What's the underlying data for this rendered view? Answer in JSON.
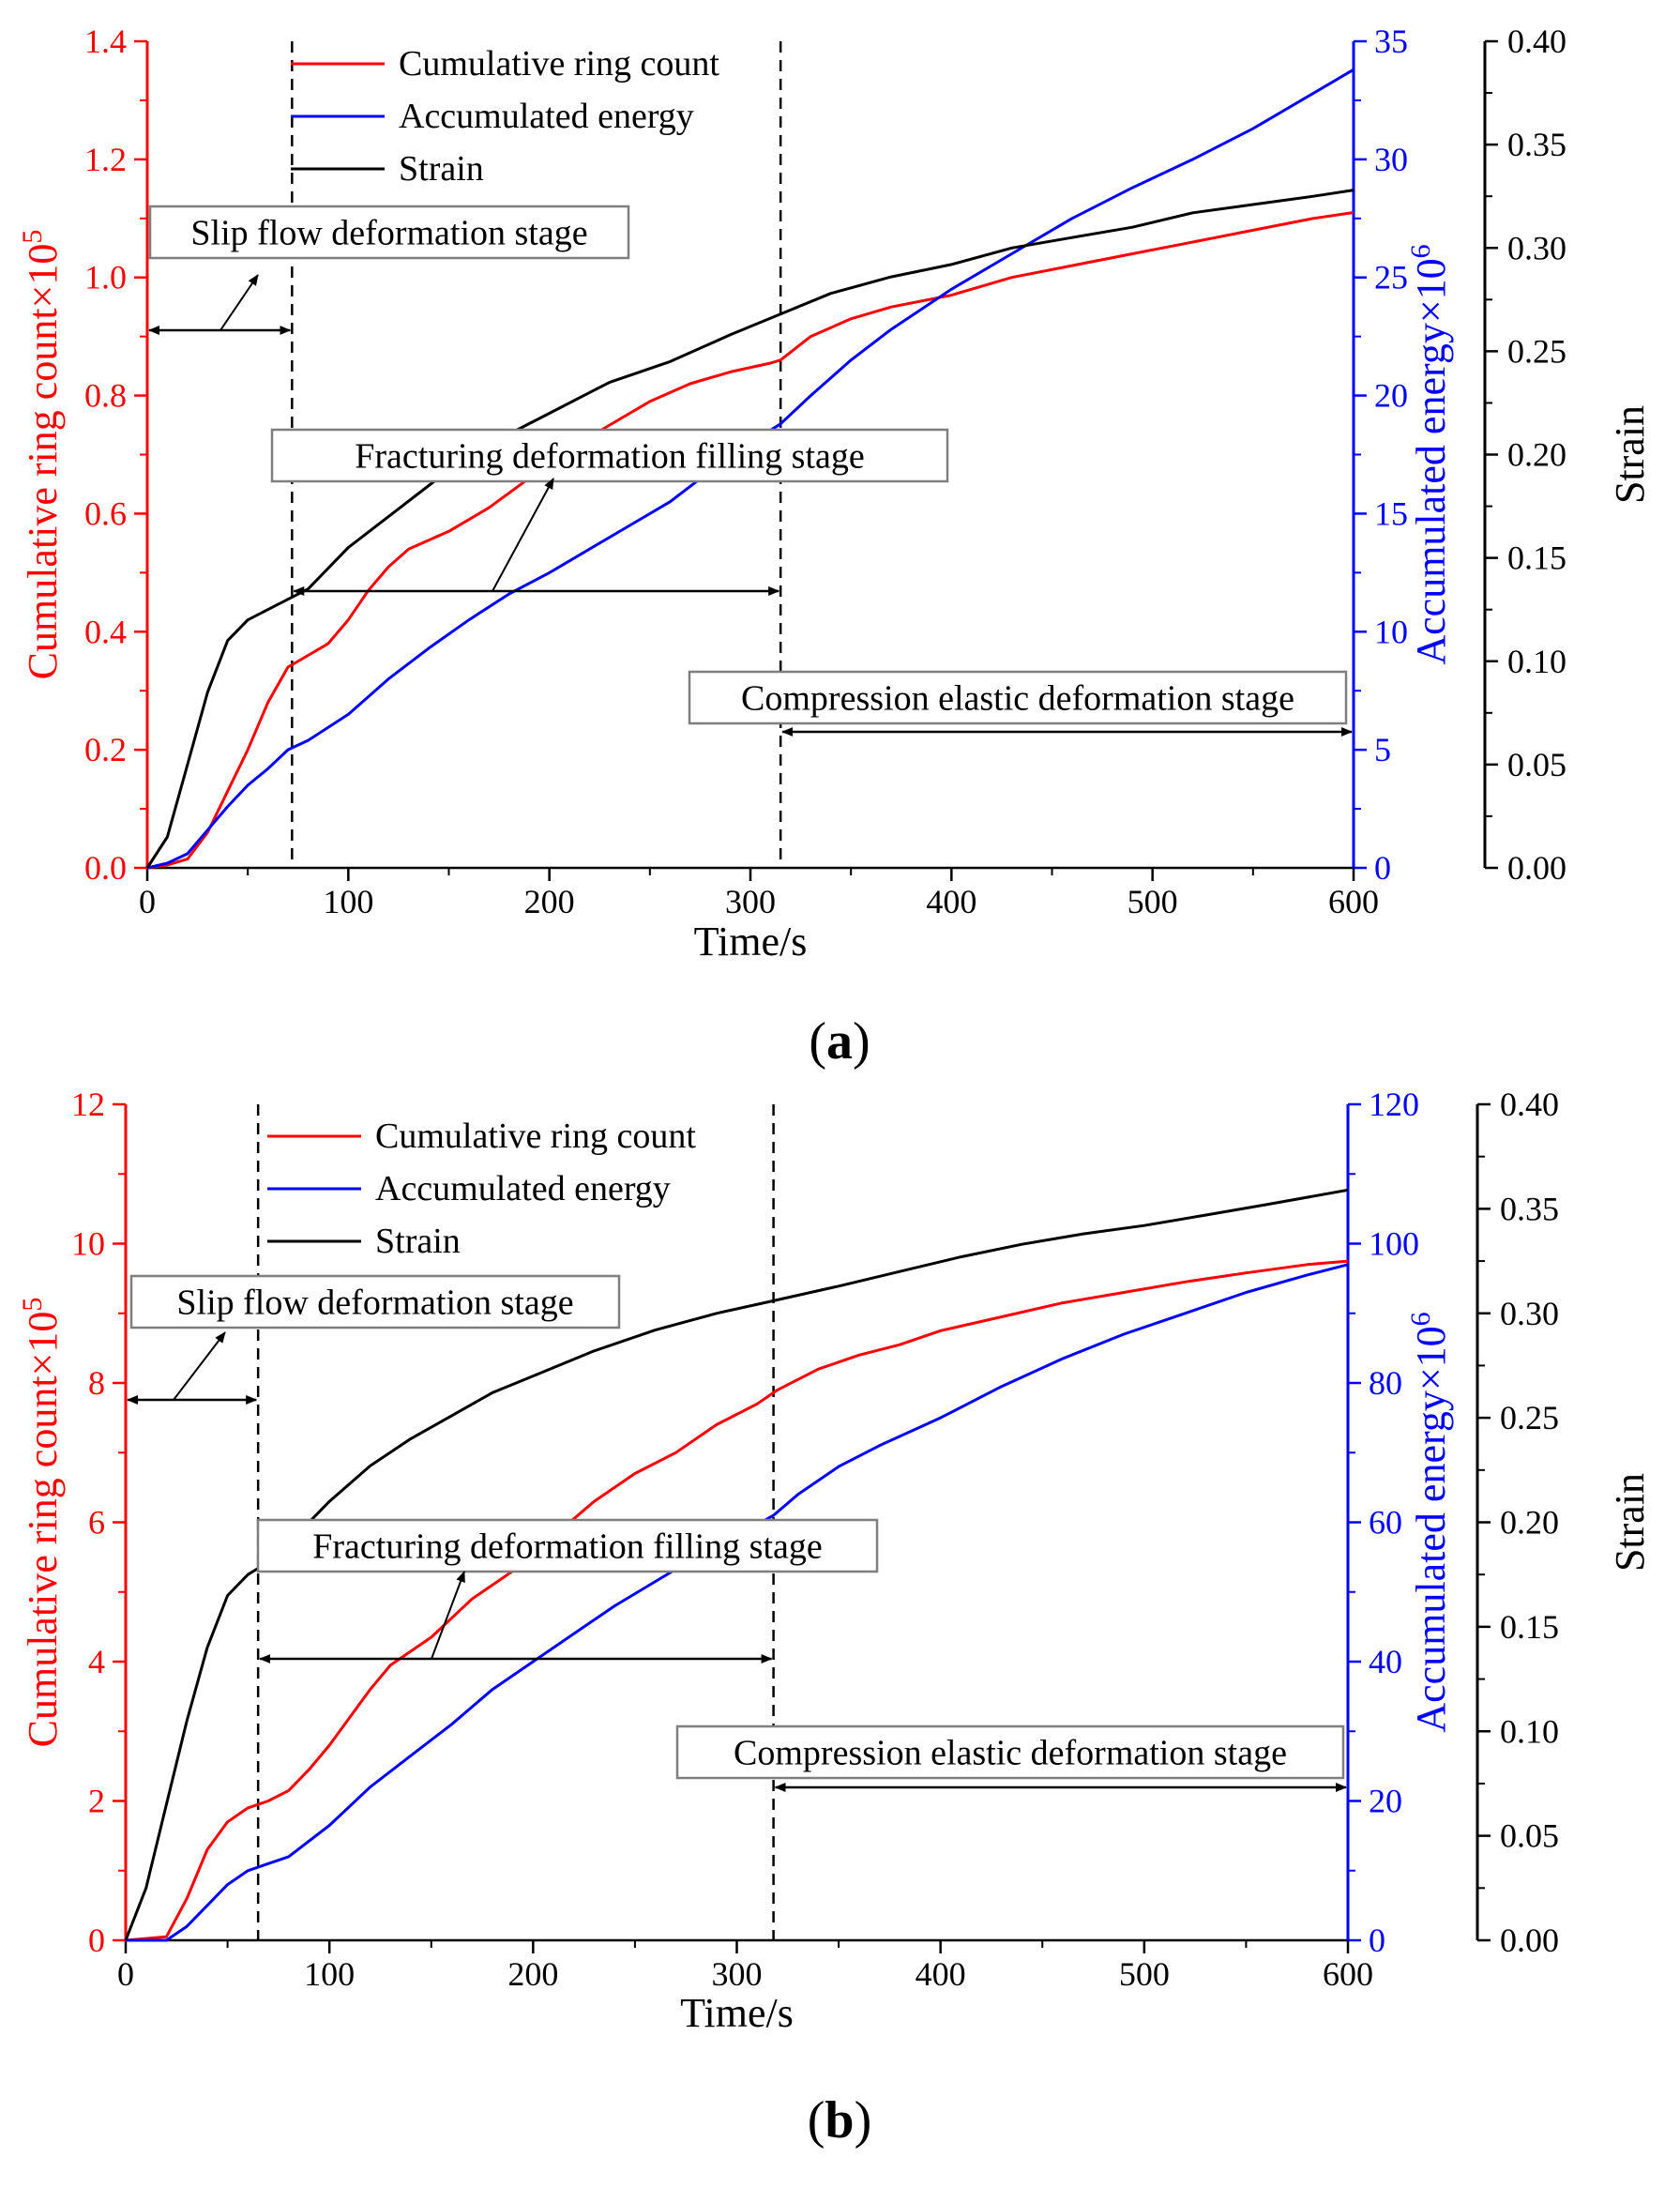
{
  "chart_data": [
    {
      "panel": "(a)",
      "panel_letter": "a",
      "type": "line",
      "xlabel": "Time/s",
      "xlim": [
        0,
        600
      ],
      "xticks": [
        0,
        100,
        200,
        300,
        400,
        500,
        600
      ],
      "ylabel_left": "Cumulative ring count×10",
      "ylabel_left_exp": "5",
      "ylim_left": [
        0,
        1.4
      ],
      "yticks_left": [
        "0.0",
        "0.2",
        "0.4",
        "0.6",
        "0.8",
        "1.0",
        "1.2",
        "1.4"
      ],
      "ylabel_right": "Accumulated energy×10",
      "ylabel_right_exp": "6",
      "ylim_right": [
        0,
        35
      ],
      "yticks_right": [
        "0",
        "5",
        "10",
        "15",
        "20",
        "25",
        "30",
        "35"
      ],
      "ylabel_strain": "Strain",
      "ylim_strain": [
        0,
        0.4
      ],
      "yticks_strain": [
        "0.00",
        "0.05",
        "0.10",
        "0.15",
        "0.20",
        "0.25",
        "0.30",
        "0.35",
        "0.40"
      ],
      "legend": [
        "Cumulative ring count",
        "Accumulated energy",
        "Strain"
      ],
      "boundaries": [
        72,
        315
      ],
      "stages": [
        {
          "label": "Slip flow deformation stage",
          "from": 0,
          "to": 72
        },
        {
          "label": "Fracturing deformation filling stage",
          "from": 72,
          "to": 315
        },
        {
          "label": "Compression elastic deformation stage",
          "from": 315,
          "to": 600
        }
      ],
      "series": [
        {
          "name": "Cumulative ring count",
          "axis": "left",
          "color": "#ff0000",
          "x": [
            0,
            10,
            20,
            30,
            40,
            50,
            60,
            70,
            80,
            90,
            100,
            110,
            120,
            130,
            150,
            170,
            190,
            210,
            230,
            250,
            270,
            290,
            310,
            315,
            330,
            350,
            370,
            400,
            430,
            460,
            490,
            520,
            550,
            580,
            600
          ],
          "y": [
            0,
            0.005,
            0.015,
            0.06,
            0.13,
            0.2,
            0.28,
            0.34,
            0.36,
            0.38,
            0.42,
            0.47,
            0.51,
            0.54,
            0.57,
            0.61,
            0.66,
            0.71,
            0.75,
            0.79,
            0.82,
            0.84,
            0.855,
            0.86,
            0.9,
            0.93,
            0.95,
            0.97,
            1.0,
            1.02,
            1.04,
            1.06,
            1.08,
            1.1,
            1.11
          ]
        },
        {
          "name": "Accumulated energy",
          "axis": "right",
          "color": "#0000ff",
          "x": [
            0,
            10,
            20,
            30,
            40,
            50,
            60,
            70,
            80,
            100,
            120,
            140,
            160,
            180,
            200,
            220,
            240,
            260,
            280,
            300,
            315,
            330,
            350,
            370,
            400,
            430,
            460,
            490,
            520,
            550,
            580,
            600
          ],
          "y": [
            0,
            0.2,
            0.6,
            1.6,
            2.6,
            3.5,
            4.2,
            5.0,
            5.4,
            6.5,
            8.0,
            9.3,
            10.5,
            11.6,
            12.5,
            13.5,
            14.5,
            15.5,
            16.8,
            18.0,
            18.8,
            20.0,
            21.5,
            22.8,
            24.5,
            26.0,
            27.5,
            28.8,
            30.0,
            31.3,
            32.8,
            33.8
          ]
        },
        {
          "name": "Strain",
          "axis": "strain",
          "color": "#000000",
          "x": [
            0,
            10,
            20,
            30,
            40,
            50,
            60,
            70,
            80,
            100,
            120,
            140,
            160,
            180,
            200,
            230,
            260,
            290,
            315,
            340,
            370,
            400,
            430,
            460,
            490,
            520,
            550,
            580,
            600
          ],
          "y": [
            0,
            0.015,
            0.05,
            0.085,
            0.11,
            0.12,
            0.125,
            0.13,
            0.135,
            0.155,
            0.17,
            0.185,
            0.2,
            0.21,
            0.22,
            0.235,
            0.245,
            0.258,
            0.268,
            0.278,
            0.286,
            0.292,
            0.3,
            0.305,
            0.31,
            0.317,
            0.321,
            0.325,
            0.328
          ]
        }
      ]
    },
    {
      "panel": "(b)",
      "panel_letter": "b",
      "type": "line",
      "xlabel": "Time/s",
      "xlim": [
        0,
        600
      ],
      "xticks": [
        0,
        100,
        200,
        300,
        400,
        500,
        600
      ],
      "ylabel_left": "Cumulative ring count×10",
      "ylabel_left_exp": "5",
      "ylim_left": [
        0,
        12
      ],
      "yticks_left": [
        "0",
        "2",
        "4",
        "6",
        "8",
        "10",
        "12"
      ],
      "ylabel_right": "Accumulated energy×10",
      "ylabel_right_exp": "6",
      "ylim_right": [
        0,
        120
      ],
      "yticks_right": [
        "0",
        "20",
        "40",
        "60",
        "80",
        "100",
        "120"
      ],
      "ylabel_strain": "Strain",
      "ylim_strain": [
        0,
        0.4
      ],
      "yticks_strain": [
        "0.00",
        "0.05",
        "0.10",
        "0.15",
        "0.20",
        "0.25",
        "0.30",
        "0.35",
        "0.40"
      ],
      "legend": [
        "Cumulative ring count",
        "Accumulated energy",
        "Strain"
      ],
      "boundaries": [
        65,
        318
      ],
      "stages": [
        {
          "label": "Slip flow deformation stage",
          "from": 0,
          "to": 65
        },
        {
          "label": "Fracturing deformation filling stage",
          "from": 65,
          "to": 318
        },
        {
          "label": "Compression elastic deformation stage",
          "from": 318,
          "to": 600
        }
      ],
      "series": [
        {
          "name": "Cumulative ring count",
          "axis": "left",
          "color": "#ff0000",
          "x": [
            0,
            20,
            30,
            40,
            50,
            60,
            70,
            80,
            90,
            100,
            110,
            120,
            130,
            150,
            170,
            190,
            210,
            230,
            250,
            270,
            290,
            310,
            320,
            340,
            360,
            380,
            400,
            430,
            460,
            490,
            520,
            550,
            580,
            600
          ],
          "y": [
            0,
            0.05,
            0.6,
            1.3,
            1.7,
            1.9,
            2.0,
            2.15,
            2.45,
            2.8,
            3.2,
            3.6,
            3.95,
            4.35,
            4.9,
            5.3,
            5.8,
            6.3,
            6.7,
            7.0,
            7.4,
            7.7,
            7.9,
            8.2,
            8.4,
            8.55,
            8.75,
            8.95,
            9.15,
            9.3,
            9.45,
            9.58,
            9.7,
            9.75
          ]
        },
        {
          "name": "Accumulated energy",
          "axis": "right",
          "color": "#0000ff",
          "x": [
            0,
            20,
            30,
            40,
            50,
            60,
            70,
            80,
            100,
            120,
            140,
            160,
            180,
            200,
            220,
            240,
            260,
            280,
            300,
            318,
            330,
            350,
            370,
            400,
            430,
            460,
            490,
            520,
            550,
            580,
            600
          ],
          "y": [
            0,
            0,
            2,
            5,
            8,
            10,
            11,
            12,
            16.5,
            22,
            26.5,
            31,
            36,
            40,
            44,
            48,
            51.5,
            55,
            58,
            61,
            64,
            68,
            71,
            75,
            79.5,
            83.5,
            87,
            90,
            93,
            95.5,
            97
          ]
        },
        {
          "name": "Strain",
          "axis": "strain",
          "color": "#000000",
          "x": [
            0,
            10,
            20,
            30,
            40,
            50,
            60,
            65,
            80,
            100,
            120,
            140,
            160,
            180,
            200,
            230,
            260,
            290,
            318,
            350,
            380,
            410,
            440,
            470,
            500,
            530,
            560,
            600
          ],
          "y": [
            0,
            0.025,
            0.065,
            0.105,
            0.14,
            0.165,
            0.175,
            0.178,
            0.19,
            0.21,
            0.227,
            0.24,
            0.251,
            0.262,
            0.27,
            0.282,
            0.292,
            0.3,
            0.306,
            0.313,
            0.32,
            0.327,
            0.333,
            0.338,
            0.342,
            0.347,
            0.352,
            0.359
          ]
        }
      ]
    }
  ]
}
